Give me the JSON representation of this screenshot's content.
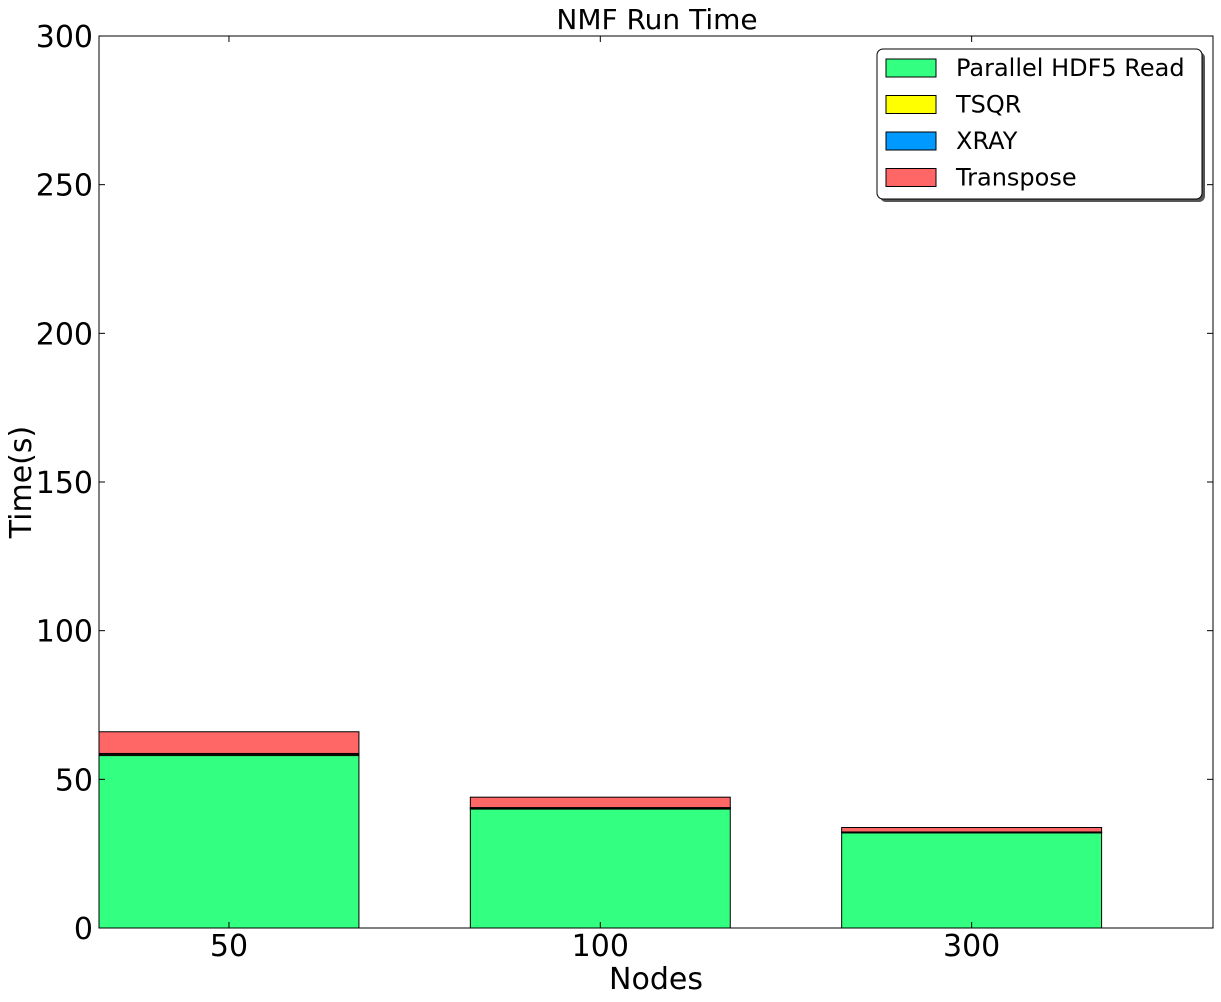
{
  "chart_data": {
    "type": "bar",
    "stacked": true,
    "title": "NMF Run Time",
    "xlabel": "Nodes",
    "ylabel": "Time(s)",
    "categories": [
      "50",
      "100",
      "300"
    ],
    "ylim": [
      0,
      300
    ],
    "yticks": [
      0,
      50,
      100,
      150,
      200,
      250,
      300
    ],
    "series": [
      {
        "name": "Parallel HDF5 Read",
        "color": "#33ff80",
        "values": [
          58,
          40,
          32
        ]
      },
      {
        "name": "TSQR",
        "color": "#ffff00",
        "values": [
          0.4,
          0.3,
          0.2
        ]
      },
      {
        "name": "XRAY",
        "color": "#0099ff",
        "values": [
          0.3,
          0.2,
          0.1
        ]
      },
      {
        "name": "Transpose",
        "color": "#ff6666",
        "values": [
          7.3,
          3.5,
          1.5
        ]
      }
    ],
    "grid": false,
    "legend_position": "top-right"
  }
}
